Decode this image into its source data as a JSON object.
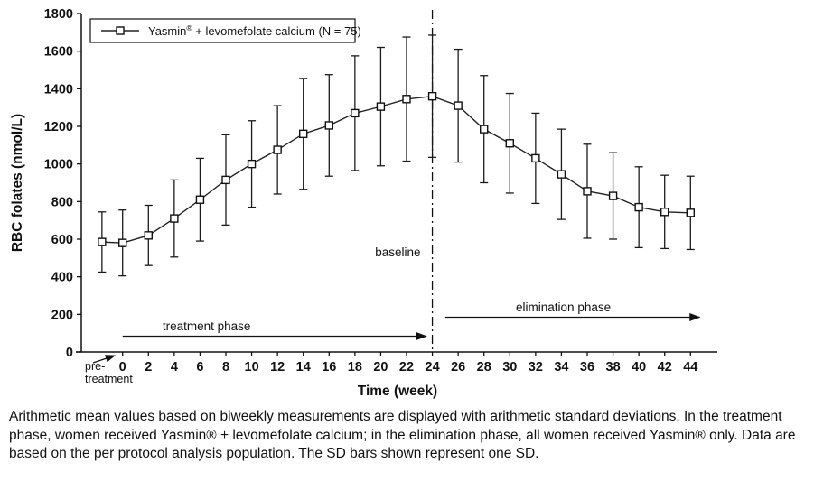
{
  "chart_data": {
    "type": "line",
    "title": "",
    "xlabel": "Time (week)",
    "ylabel": "RBC folates (nmol/L)",
    "ylim": [
      0,
      1800
    ],
    "ytick_step": 200,
    "x_tick_labels": [
      0,
      2,
      4,
      6,
      8,
      10,
      12,
      14,
      16,
      18,
      20,
      22,
      24,
      26,
      28,
      30,
      32,
      34,
      36,
      38,
      40,
      42,
      44
    ],
    "pre_label_line1": "pre-",
    "pre_label_line2": "treatment",
    "baseline": {
      "week": 24,
      "label": "baseline"
    },
    "phases": [
      {
        "label": "treatment phase",
        "from_week": 0,
        "to_week": 24
      },
      {
        "label": "elimination phase",
        "from_week": 25,
        "to_week": 44
      }
    ],
    "legend_position": "top-left",
    "grid": false,
    "error_bars": "one SD",
    "series": [
      {
        "name": "Yasmin® + levomefolate calcium (N = 75)",
        "marker": "open-square",
        "points": [
          {
            "week": "pre",
            "mean": 585,
            "sd": 160
          },
          {
            "week": 0,
            "mean": 580,
            "sd": 175
          },
          {
            "week": 2,
            "mean": 620,
            "sd": 160
          },
          {
            "week": 4,
            "mean": 710,
            "sd": 205
          },
          {
            "week": 6,
            "mean": 810,
            "sd": 220
          },
          {
            "week": 8,
            "mean": 915,
            "sd": 240
          },
          {
            "week": 10,
            "mean": 1000,
            "sd": 230
          },
          {
            "week": 12,
            "mean": 1075,
            "sd": 235
          },
          {
            "week": 14,
            "mean": 1160,
            "sd": 295
          },
          {
            "week": 16,
            "mean": 1205,
            "sd": 270
          },
          {
            "week": 18,
            "mean": 1270,
            "sd": 305
          },
          {
            "week": 20,
            "mean": 1305,
            "sd": 315
          },
          {
            "week": 22,
            "mean": 1345,
            "sd": 330
          },
          {
            "week": 24,
            "mean": 1360,
            "sd": 325
          },
          {
            "week": 26,
            "mean": 1310,
            "sd": 300
          },
          {
            "week": 28,
            "mean": 1185,
            "sd": 285
          },
          {
            "week": 30,
            "mean": 1110,
            "sd": 265
          },
          {
            "week": 32,
            "mean": 1030,
            "sd": 240
          },
          {
            "week": 34,
            "mean": 945,
            "sd": 240
          },
          {
            "week": 36,
            "mean": 855,
            "sd": 250
          },
          {
            "week": 38,
            "mean": 830,
            "sd": 230
          },
          {
            "week": 40,
            "mean": 770,
            "sd": 215
          },
          {
            "week": 42,
            "mean": 745,
            "sd": 195
          },
          {
            "week": 44,
            "mean": 740,
            "sd": 195
          }
        ]
      }
    ]
  },
  "caption": "Arithmetic mean values based on biweekly measurements are displayed with arithmetic standard deviations. In the treatment phase, women received Yasmin® + levomefolate calcium; in the elimination phase, all women received Yasmin® only. Data are based on the per protocol analysis population. The SD bars shown represent one SD."
}
